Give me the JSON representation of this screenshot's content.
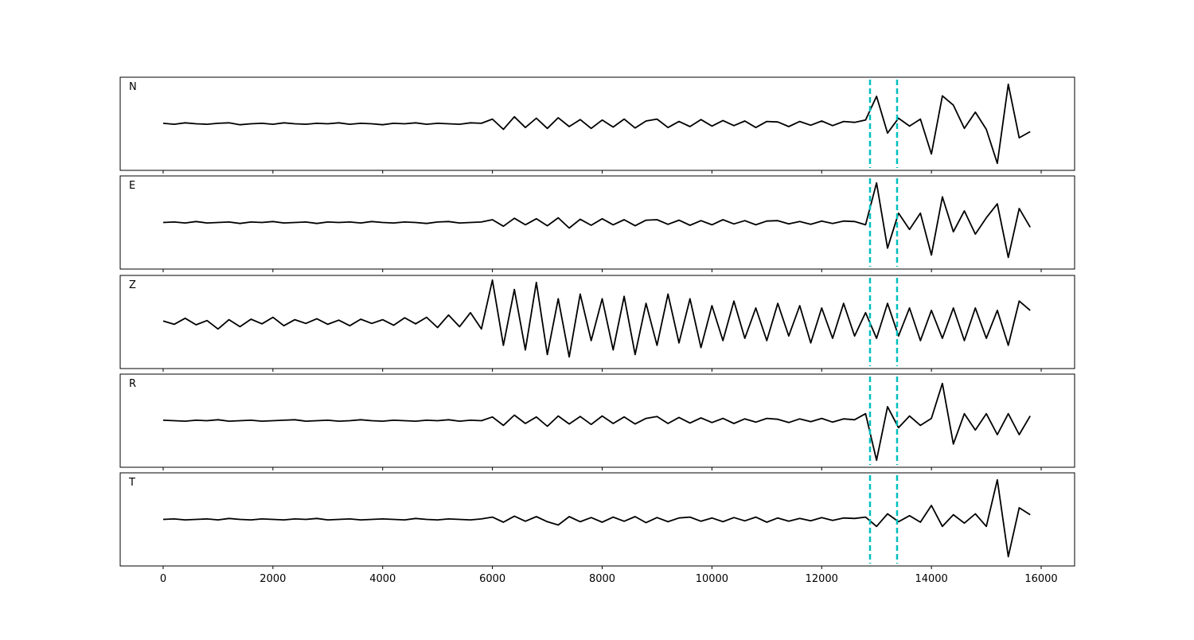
{
  "chart_data": {
    "type": "line",
    "x": [
      0,
      200,
      400,
      600,
      800,
      1000,
      1200,
      1400,
      1600,
      1800,
      2000,
      2200,
      2400,
      2600,
      2800,
      3000,
      3200,
      3400,
      3600,
      3800,
      4000,
      4200,
      4400,
      4600,
      4800,
      5000,
      5200,
      5400,
      5600,
      5800,
      6000,
      6200,
      6400,
      6600,
      6800,
      7000,
      7200,
      7400,
      7600,
      7800,
      8000,
      8200,
      8400,
      8600,
      8800,
      9000,
      9200,
      9400,
      9600,
      9800,
      10000,
      10200,
      10400,
      10600,
      10800,
      11000,
      11200,
      11400,
      11600,
      11800,
      12000,
      12200,
      12400,
      12600,
      12800,
      13000,
      13200,
      13400,
      13600,
      13800,
      14000,
      14200,
      14400,
      14600,
      14800,
      15000,
      15200,
      15400,
      15600,
      15800
    ],
    "xlim": [
      -783,
      16609
    ],
    "xticks": [
      0,
      2000,
      4000,
      6000,
      8000,
      10000,
      12000,
      14000,
      16000
    ],
    "ylim": [
      -1,
      1
    ],
    "vlines": [
      12881,
      13374
    ],
    "vline_color": "#00bfbf",
    "series": [
      {
        "name": "N",
        "color": "#000000",
        "values": [
          0.01,
          -0.01,
          0.02,
          0,
          -0.01,
          0.01,
          0.02,
          -0.02,
          0,
          0.01,
          -0.01,
          0.02,
          0,
          -0.01,
          0.01,
          0,
          0.02,
          -0.01,
          0.01,
          0,
          -0.02,
          0.01,
          0,
          0.02,
          -0.01,
          0.01,
          0,
          -0.01,
          0.02,
          0.01,
          0.1,
          -0.12,
          0.15,
          -0.08,
          0.12,
          -0.1,
          0.13,
          -0.06,
          0.09,
          -0.1,
          0.08,
          -0.07,
          0.1,
          -0.09,
          0.06,
          0.1,
          -0.08,
          0.05,
          -0.06,
          0.09,
          -0.05,
          0.07,
          -0.04,
          0.06,
          -0.08,
          0.05,
          0.04,
          -0.06,
          0.05,
          -0.03,
          0.06,
          -0.04,
          0.05,
          0.03,
          0.08,
          0.59,
          -0.2,
          0.12,
          -0.05,
          0.1,
          -0.65,
          0.6,
          0.4,
          -0.1,
          0.25,
          -0.12,
          -0.85,
          0.85,
          -0.3,
          -0.17
        ]
      },
      {
        "name": "E",
        "color": "#000000",
        "values": [
          0,
          0.01,
          -0.01,
          0.02,
          -0.01,
          0,
          0.01,
          -0.02,
          0.01,
          0,
          0.02,
          -0.01,
          0,
          0.01,
          -0.02,
          0.01,
          0,
          0.01,
          -0.01,
          0.02,
          0,
          -0.01,
          0.01,
          0,
          -0.02,
          0.01,
          0.02,
          -0.01,
          0,
          0.01,
          0.06,
          -0.08,
          0.09,
          -0.05,
          0.08,
          -0.07,
          0.1,
          -0.12,
          0.07,
          -0.06,
          0.08,
          -0.05,
          0.06,
          -0.07,
          0.05,
          0.06,
          -0.04,
          0.05,
          -0.06,
          0.04,
          -0.05,
          0.06,
          -0.03,
          0.04,
          -0.05,
          0.03,
          0.04,
          -0.03,
          0.02,
          -0.04,
          0.03,
          -0.02,
          0.03,
          0.02,
          -0.05,
          0.85,
          -0.55,
          0.2,
          -0.15,
          0.2,
          -0.7,
          0.55,
          -0.2,
          0.25,
          -0.25,
          0.1,
          0.4,
          -0.75,
          0.3,
          -0.1
        ]
      },
      {
        "name": "Z",
        "color": "#000000",
        "values": [
          0.02,
          -0.05,
          0.08,
          -0.06,
          0.03,
          -0.15,
          0.05,
          -0.1,
          0.06,
          -0.04,
          0.1,
          -0.08,
          0.05,
          -0.03,
          0.07,
          -0.05,
          0.04,
          -0.08,
          0.06,
          -0.03,
          0.05,
          -0.07,
          0.09,
          -0.04,
          0.1,
          -0.12,
          0.15,
          -0.1,
          0.2,
          -0.15,
          0.9,
          -0.5,
          0.7,
          -0.6,
          0.85,
          -0.7,
          0.5,
          -0.75,
          0.6,
          -0.4,
          0.5,
          -0.6,
          0.55,
          -0.7,
          0.4,
          -0.5,
          0.6,
          -0.45,
          0.5,
          -0.55,
          0.35,
          -0.4,
          0.45,
          -0.35,
          0.3,
          -0.4,
          0.4,
          -0.3,
          0.35,
          -0.45,
          0.3,
          -0.35,
          0.4,
          -0.3,
          0.2,
          -0.35,
          0.4,
          -0.3,
          0.3,
          -0.4,
          0.25,
          -0.35,
          0.3,
          -0.4,
          0.3,
          -0.35,
          0.25,
          -0.5,
          0.45,
          0.25
        ]
      },
      {
        "name": "R",
        "color": "#000000",
        "values": [
          0.01,
          0,
          -0.01,
          0.01,
          0,
          0.02,
          -0.01,
          0,
          0.01,
          -0.01,
          0,
          0.01,
          0.02,
          -0.01,
          0,
          0.01,
          -0.01,
          0,
          0.02,
          0,
          -0.01,
          0.01,
          0,
          -0.01,
          0.01,
          0,
          0.02,
          -0.01,
          0.01,
          0,
          0.08,
          -0.1,
          0.12,
          -0.06,
          0.08,
          -0.12,
          0.1,
          -0.07,
          0.09,
          -0.08,
          0.1,
          -0.06,
          0.08,
          -0.07,
          0.05,
          0.09,
          -0.06,
          0.07,
          -0.05,
          0.06,
          -0.04,
          0.05,
          -0.06,
          0.04,
          -0.03,
          0.05,
          0.03,
          -0.04,
          0.04,
          -0.02,
          0.05,
          -0.03,
          0.04,
          0.02,
          0.15,
          -0.85,
          0.3,
          -0.15,
          0.1,
          -0.1,
          0.05,
          0.8,
          -0.5,
          0.15,
          -0.2,
          0.15,
          -0.3,
          0.15,
          -0.3,
          0.1
        ]
      },
      {
        "name": "T",
        "color": "#000000",
        "values": [
          0,
          0.01,
          -0.01,
          0,
          0.01,
          -0.01,
          0.02,
          0,
          -0.01,
          0.01,
          0,
          -0.01,
          0.01,
          0,
          0.02,
          -0.01,
          0,
          0.01,
          -0.01,
          0,
          0.01,
          0,
          -0.01,
          0.02,
          0,
          -0.01,
          0.01,
          0,
          -0.01,
          0.01,
          0.05,
          -0.06,
          0.07,
          -0.04,
          0.06,
          -0.05,
          -0.12,
          0.06,
          -0.05,
          0.04,
          -0.06,
          0.05,
          -0.04,
          0.06,
          -0.07,
          0.04,
          -0.05,
          0.03,
          0.05,
          -0.04,
          0.03,
          -0.05,
          0.04,
          -0.03,
          0.05,
          -0.06,
          0.03,
          -0.04,
          0.02,
          -0.03,
          0.04,
          -0.02,
          0.03,
          0.02,
          0.05,
          -0.15,
          0.12,
          -0.05,
          0.08,
          -0.06,
          0.3,
          -0.15,
          0.1,
          -0.08,
          0.12,
          -0.15,
          0.85,
          -0.8,
          0.25,
          0.1
        ]
      }
    ]
  }
}
